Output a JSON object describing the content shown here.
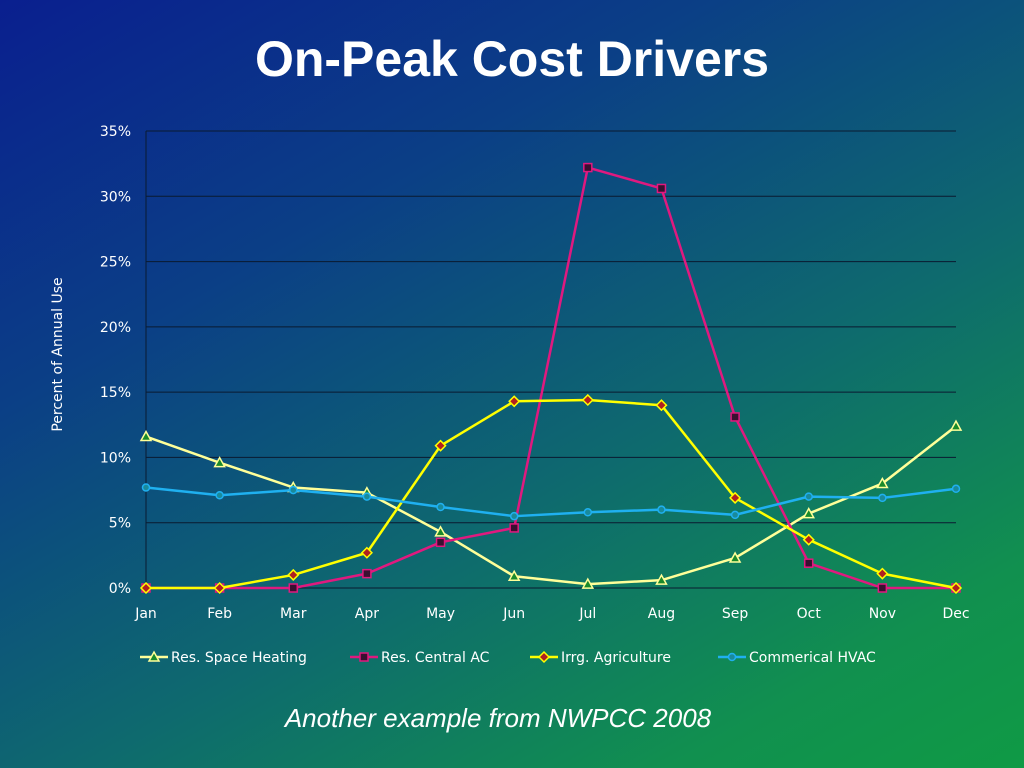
{
  "slide": {
    "title": "On-Peak Cost Drivers",
    "caption": "Another example from NWPCC 2008"
  },
  "chart_data": {
    "type": "line",
    "title": "",
    "xlabel": "",
    "ylabel": "Percent of Annual Use",
    "ylim": [
      0,
      35
    ],
    "yticks": [
      "0%",
      "5%",
      "10%",
      "15%",
      "20%",
      "25%",
      "30%",
      "35%"
    ],
    "grid": true,
    "legend_position": "bottom",
    "categories": [
      "Jan",
      "Feb",
      "Mar",
      "Apr",
      "May",
      "Jun",
      "Jul",
      "Aug",
      "Sep",
      "Oct",
      "Nov",
      "Dec"
    ],
    "series": [
      {
        "name": "Res. Space Heating",
        "color": "#ffff99",
        "marker": "triangle",
        "marker_color": "#1a8a2a",
        "values": [
          11.6,
          9.6,
          7.7,
          7.3,
          4.3,
          0.9,
          0.3,
          0.6,
          2.3,
          5.7,
          8.0,
          12.4
        ]
      },
      {
        "name": "Res. Central AC",
        "color": "#e0197f",
        "marker": "square",
        "marker_color": "#3a1030",
        "values": [
          0.0,
          0.0,
          0.0,
          1.1,
          3.5,
          4.6,
          32.2,
          30.6,
          13.1,
          1.9,
          0.0,
          0.0
        ]
      },
      {
        "name": "Irrg. Agriculture",
        "color": "#ffff00",
        "marker": "diamond",
        "marker_color": "#b02020",
        "values": [
          0.0,
          0.0,
          1.0,
          2.7,
          10.9,
          14.3,
          14.4,
          14.0,
          6.9,
          3.7,
          1.1,
          0.0
        ]
      },
      {
        "name": "Commerical HVAC",
        "color": "#1fb0f0",
        "marker": "circle",
        "marker_color": "#1a8a9a",
        "values": [
          7.7,
          7.1,
          7.5,
          7.0,
          6.2,
          5.5,
          5.8,
          6.0,
          5.6,
          7.0,
          6.9,
          7.6
        ]
      }
    ]
  }
}
